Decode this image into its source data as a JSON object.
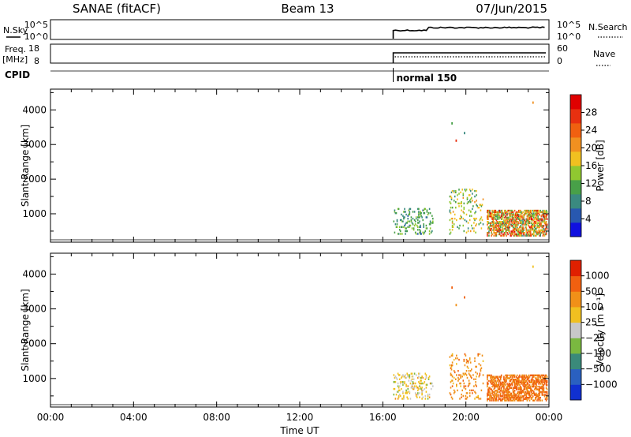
{
  "header": {
    "title_left": "SANAE (fitACF)",
    "title_center": "Beam 13",
    "title_right": "07/Jun/2015"
  },
  "strip_panel": {
    "nsky_label": "N.Sky",
    "nsky_ticks": [
      "10^5",
      "10^0"
    ],
    "nsearch_label": "N.Search",
    "nsearch_ticks": [
      "10^5",
      "10^0"
    ],
    "freq_label": "Freq.",
    "freq_unit": "[MHz]",
    "freq_ticks": [
      "18",
      "8"
    ],
    "nave_label": "Nave",
    "nave_ticks": [
      "60",
      "0"
    ],
    "cpid_label": "CPID",
    "cpid_value": "normal 150",
    "data_start_hour": 16.5
  },
  "colors": {
    "power_scale": [
      "#1010e0",
      "#2858b0",
      "#3a8a80",
      "#48a048",
      "#90c830",
      "#f0c020",
      "#f09020",
      "#f06010",
      "#e83010",
      "#e00000"
    ],
    "velocity_scale": [
      "#1030d0",
      "#2a60c0",
      "#3a8a7a",
      "#7ab840",
      "#c8c8c8",
      "#f0c020",
      "#f09018",
      "#f06010",
      "#e02000"
    ]
  },
  "chart_data": [
    {
      "type": "heatmap",
      "title": "Power",
      "xlabel": "Time UT",
      "ylabel": "Slant Range [km]",
      "x_tick_labels": [
        "00:00",
        "04:00",
        "08:00",
        "12:00",
        "16:00",
        "20:00",
        "00:00"
      ],
      "x_ticks_hours": [
        0,
        4,
        8,
        12,
        16,
        20,
        24
      ],
      "xlim_hours": [
        0,
        24
      ],
      "y_ticks": [
        1000,
        2000,
        3000,
        4000
      ],
      "y_tick_labels": [
        "1000",
        "2000",
        "3000",
        "4000"
      ],
      "ylim": [
        180,
        4600
      ],
      "colorbar_label": "Power [dB]",
      "colorbar_ticks": [
        "28",
        "24",
        "20",
        "16",
        "12",
        "8",
        "4"
      ],
      "colorbar_values": [
        28,
        24,
        20,
        16,
        12,
        8,
        4
      ],
      "colorbar_range": [
        0,
        32
      ],
      "echo_regions": [
        {
          "t_start": 16.5,
          "t_end": 18.4,
          "r_min": 400,
          "r_max": 1150,
          "value_range": [
            6,
            16
          ],
          "density": 0.18
        },
        {
          "t_start": 19.2,
          "t_end": 20.8,
          "r_min": 400,
          "r_max": 1700,
          "value_range": [
            8,
            20
          ],
          "density": 0.1
        },
        {
          "t_start": 21.0,
          "t_end": 23.9,
          "r_min": 350,
          "r_max": 1100,
          "value_range": [
            8,
            30
          ],
          "density": 0.55
        }
      ],
      "isolated_echoes": [
        [
          19.3,
          3600,
          10
        ],
        [
          19.5,
          3100,
          26
        ],
        [
          19.9,
          3320,
          8
        ],
        [
          23.2,
          4200,
          20
        ],
        [
          20.2,
          1050,
          14
        ]
      ]
    },
    {
      "type": "heatmap",
      "title": "Velocity",
      "xlabel": "Time UT",
      "ylabel": "Slant Range [km]",
      "x_tick_labels": [
        "00:00",
        "04:00",
        "08:00",
        "12:00",
        "16:00",
        "20:00",
        "00:00"
      ],
      "x_ticks_hours": [
        0,
        4,
        8,
        12,
        16,
        20,
        24
      ],
      "xlim_hours": [
        0,
        24
      ],
      "y_ticks": [
        1000,
        2000,
        3000,
        4000
      ],
      "y_tick_labels": [
        "1000",
        "2000",
        "3000",
        "4000"
      ],
      "ylim": [
        180,
        4600
      ],
      "colorbar_label": "Velocity [m s⁻¹]",
      "colorbar_ticks": [
        "1000",
        "500",
        "100",
        "25",
        "−25",
        "−100",
        "−500",
        "−1000"
      ],
      "colorbar_values": [
        1000,
        500,
        100,
        25,
        -25,
        -100,
        -500,
        -1000
      ],
      "echo_regions": [
        {
          "t_start": 16.5,
          "t_end": 18.4,
          "r_min": 400,
          "r_max": 1150,
          "value_range": [
            -120,
            40
          ],
          "density": 0.18
        },
        {
          "t_start": 19.2,
          "t_end": 20.8,
          "r_min": 400,
          "r_max": 1700,
          "value_range": [
            -600,
            -50
          ],
          "density": 0.1
        },
        {
          "t_start": 21.0,
          "t_end": 23.9,
          "r_min": 350,
          "r_max": 1100,
          "value_range": [
            -1000,
            -100
          ],
          "density": 0.55
        }
      ],
      "isolated_echoes": [
        [
          19.3,
          3600,
          -1000
        ],
        [
          19.5,
          3100,
          -500
        ],
        [
          19.9,
          3320,
          -800
        ],
        [
          23.2,
          4200,
          -100
        ],
        [
          20.2,
          1050,
          -300
        ]
      ]
    }
  ]
}
